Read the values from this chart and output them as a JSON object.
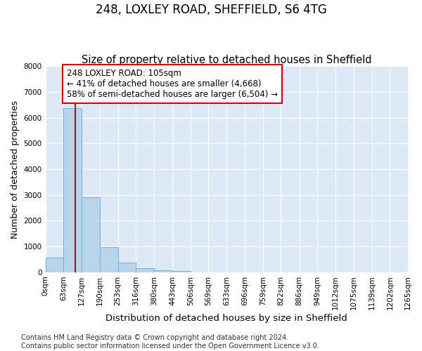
{
  "title": "248, LOXLEY ROAD, SHEFFIELD, S6 4TG",
  "subtitle": "Size of property relative to detached houses in Sheffield",
  "xlabel": "Distribution of detached houses by size in Sheffield",
  "ylabel": "Number of detached properties",
  "bin_edges": [
    0,
    63,
    127,
    190,
    253,
    316,
    380,
    443,
    506,
    569,
    633,
    696,
    759,
    822,
    886,
    949,
    1012,
    1075,
    1139,
    1202,
    1265
  ],
  "bar_heights": [
    570,
    6380,
    2920,
    970,
    370,
    160,
    90,
    55,
    0,
    0,
    0,
    0,
    0,
    0,
    0,
    0,
    0,
    0,
    0,
    0
  ],
  "bar_color": "#b8d4ea",
  "bar_edgecolor": "#7aaed4",
  "bar_linewidth": 0.7,
  "property_size": 105,
  "vline_color": "#cc0000",
  "annotation_text": "248 LOXLEY ROAD: 105sqm\n← 41% of detached houses are smaller (4,668)\n58% of semi-detached houses are larger (6,504) →",
  "annotation_box_color": "#cc0000",
  "ylim": [
    0,
    8000
  ],
  "yticks": [
    0,
    1000,
    2000,
    3000,
    4000,
    5000,
    6000,
    7000,
    8000
  ],
  "xlim_max": 1265,
  "plot_bg_color": "#dce8f5",
  "grid_color": "#c8d8e8",
  "footer_line1": "Contains HM Land Registry data © Crown copyright and database right 2024.",
  "footer_line2": "Contains public sector information licensed under the Open Government Licence v3.0.",
  "title_fontsize": 12,
  "subtitle_fontsize": 10.5,
  "xlabel_fontsize": 9.5,
  "ylabel_fontsize": 9,
  "tick_fontsize": 7.5,
  "footer_fontsize": 7,
  "annot_fontsize": 8.5
}
